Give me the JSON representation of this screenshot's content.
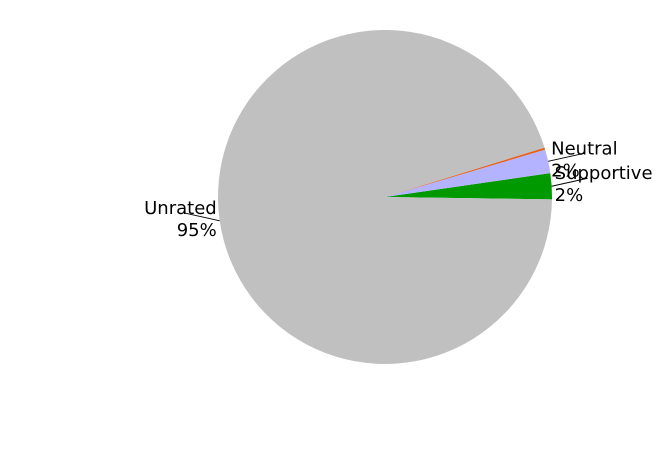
{
  "chart_data": {
    "type": "pie",
    "slices": [
      {
        "label": "Supportive",
        "pct_label": "2%",
        "value": 2.5,
        "color": "#009900"
      },
      {
        "label": "Neutral",
        "pct_label": "2%",
        "value": 2.3,
        "color": "#b3b3ff"
      },
      {
        "label": "",
        "pct_label": "",
        "value": 0.2,
        "color": "#e8601c"
      },
      {
        "label": "Unrated",
        "pct_label": "95%",
        "value": 95.0,
        "color": "#c0c0c0"
      }
    ],
    "legend": "none",
    "grid": false
  }
}
